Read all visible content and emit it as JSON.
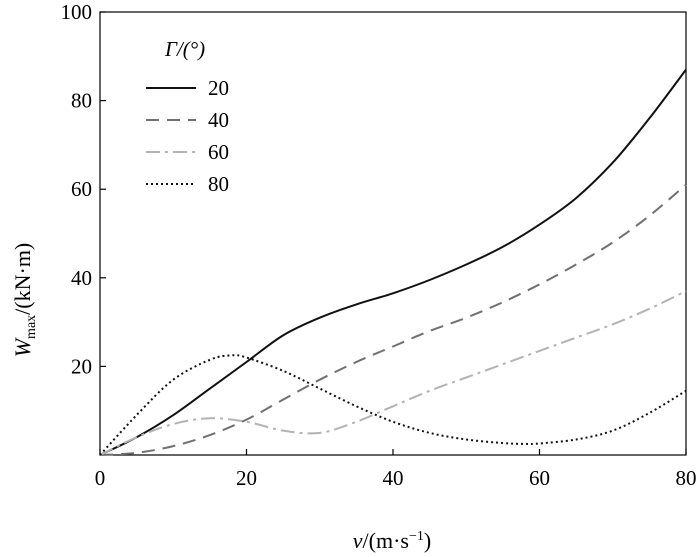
{
  "chart_data": {
    "type": "line",
    "xlabel": {
      "var": "v",
      "unit_open": "/(m·s",
      "sup": "−1",
      "unit_close": ")"
    },
    "ylabel": {
      "var": "W",
      "sub": "max",
      "unit": "/(kN·m)"
    },
    "xlim": [
      0,
      80
    ],
    "ylim": [
      0,
      100
    ],
    "xticks": [
      0,
      20,
      40,
      60,
      80
    ],
    "yticks": [
      20,
      40,
      60,
      80,
      100
    ],
    "xtick_labels": [
      "0",
      "20",
      "40",
      "60",
      "80"
    ],
    "ytick_labels": [
      "20",
      "40",
      "60",
      "80",
      "100"
    ],
    "grid": false,
    "legend": {
      "title": "Γ/(°)",
      "position": "top-left"
    },
    "series": [
      {
        "name": "20",
        "color": "#111111",
        "dash": "solid",
        "x": [
          0,
          5,
          10,
          15,
          20,
          25,
          30,
          35,
          40,
          45,
          50,
          55,
          60,
          65,
          70,
          75,
          80
        ],
        "y": [
          0,
          4,
          9,
          15,
          21,
          27,
          31,
          34,
          36.5,
          39.5,
          43,
          47,
          52,
          58,
          66,
          76,
          87
        ]
      },
      {
        "name": "40",
        "color": "#707070",
        "dash": "dash",
        "x": [
          0,
          5,
          10,
          15,
          20,
          25,
          30,
          35,
          40,
          45,
          50,
          55,
          60,
          65,
          70,
          75,
          80
        ],
        "y": [
          0,
          0.5,
          2,
          4.5,
          8,
          12.5,
          17,
          21,
          24.5,
          28,
          31,
          34.5,
          38.5,
          43,
          48,
          54,
          61
        ]
      },
      {
        "name": "60",
        "color": "#b3b3b3",
        "dash": "dashdot",
        "x": [
          0,
          5,
          10,
          15,
          20,
          25,
          30,
          35,
          40,
          45,
          50,
          55,
          60,
          65,
          70,
          75,
          80
        ],
        "y": [
          0,
          4,
          7,
          8.3,
          7.5,
          5.5,
          5,
          7.5,
          11,
          14.5,
          17.5,
          20.5,
          23.5,
          26.5,
          29.5,
          33,
          37
        ]
      },
      {
        "name": "80",
        "color": "#111111",
        "dash": "dot",
        "x": [
          0,
          5,
          10,
          15,
          18,
          20,
          25,
          30,
          35,
          40,
          45,
          50,
          55,
          58,
          60,
          65,
          70,
          75,
          80
        ],
        "y": [
          0,
          9,
          17,
          21.5,
          22.5,
          22,
          19,
          15,
          11,
          7.5,
          5,
          3.5,
          2.7,
          2.5,
          2.6,
          3.5,
          5.5,
          9.5,
          14.5
        ]
      }
    ]
  }
}
